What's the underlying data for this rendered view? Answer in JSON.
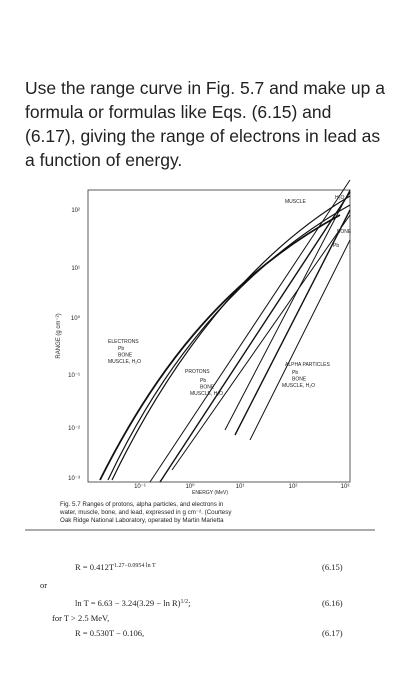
{
  "question": "Use the range curve in Fig. 5.7 and make up a formula or formulas like Eqs. (6.15) and (6.17), giving the range of electrons in lead as a function of energy.",
  "figure": {
    "y_axis_label": "RANGE (g cm⁻²)",
    "x_axis_label": "ENERGY (MeV)",
    "y_tick_labels": [
      "10²",
      "10¹",
      "10⁰",
      "10⁻¹",
      "10⁻²",
      "10⁻³"
    ],
    "x_tick_labels": [
      "10⁻¹",
      "10⁰",
      "10¹",
      "10²",
      "10³"
    ],
    "top_labels": [
      "MUSCLE",
      "H₂O",
      "BONE",
      "Pb"
    ],
    "electrons": {
      "title": "ELECTRONS",
      "labels": [
        "Pb",
        "BONE",
        "MUSCLE, H₂O"
      ]
    },
    "protons": {
      "title": "PROTONS",
      "labels": [
        "Pb",
        "BONE",
        "MUSCLE, H₂O"
      ]
    },
    "alpha": {
      "title": "ALPHA PARTICLES",
      "labels": [
        "Pb",
        "BONE",
        "MUSCLE, H₂O"
      ]
    },
    "caption": [
      "Fig. 5.7  Ranges of protons, alpha particles, and electrons in",
      "water, muscle, bone, and lead, expressed in g cm⁻². (Courtesy",
      "Oak Ridge National Laboratory, operated by Martin Marietta"
    ]
  },
  "equations": {
    "eq1": {
      "main": "R = 0.412T",
      "sup": "1.27−0.0954 ln T",
      "number": "(6.15)"
    },
    "or": "or",
    "eq2": {
      "main": "ln T = 6.63 − 3.24(3.29 − ln R)",
      "sup": "1/2",
      "tail": ";",
      "number": "(6.16)"
    },
    "condition": "for T > 2.5 MeV,",
    "eq3": {
      "main": "R = 0.530T − 0.106,",
      "number": "(6.17)"
    }
  }
}
